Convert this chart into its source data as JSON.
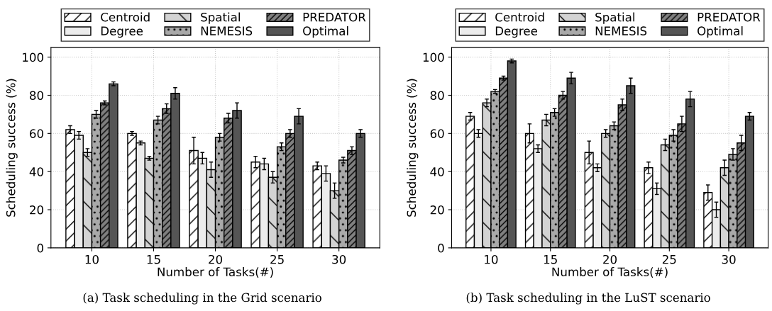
{
  "chart_data": [
    {
      "type": "bar",
      "xlabel": "Number of Tasks(#)",
      "ylabel": "Scheduling success (%)",
      "categories": [
        "10",
        "15",
        "20",
        "25",
        "30"
      ],
      "ylim": [
        0,
        105
      ],
      "yticks": [
        0,
        20,
        40,
        60,
        80,
        100
      ],
      "grid": true,
      "legend": "top",
      "annotations": [
        "(a) Task scheduling in the Grid scenario"
      ],
      "series": [
        {
          "name": "Centroid",
          "color": "#ffffff",
          "values": [
            62,
            60,
            51,
            45,
            43
          ],
          "errors": [
            2,
            1,
            7,
            3,
            2
          ]
        },
        {
          "name": "Degree",
          "color": "#ececec",
          "values": [
            59,
            55,
            47,
            44,
            39
          ],
          "errors": [
            2,
            1,
            3,
            3,
            4
          ]
        },
        {
          "name": "Spatial",
          "color": "#d3d3d3",
          "values": [
            50,
            47,
            41,
            37,
            30
          ],
          "errors": [
            2,
            1,
            4,
            3,
            4
          ]
        },
        {
          "name": "NEMESIS",
          "color": "#a9a9a9",
          "values": [
            70,
            67,
            58,
            53,
            46
          ],
          "errors": [
            2,
            2,
            2,
            2,
            1.5
          ]
        },
        {
          "name": "PREDATOR",
          "color": "#808080",
          "values": [
            76,
            73,
            68,
            60,
            51
          ],
          "errors": [
            1,
            2.5,
            2.5,
            2,
            2
          ]
        },
        {
          "name": "Optimal",
          "color": "#555555",
          "values": [
            86,
            81,
            72,
            69,
            60
          ],
          "errors": [
            1,
            3,
            4,
            4,
            2
          ]
        }
      ]
    },
    {
      "type": "bar",
      "xlabel": "Number of Tasks(#)",
      "ylabel": "Scheduling success (%)",
      "categories": [
        "10",
        "15",
        "20",
        "25",
        "30"
      ],
      "ylim": [
        0,
        105
      ],
      "yticks": [
        0,
        20,
        40,
        60,
        80,
        100
      ],
      "grid": true,
      "legend": "top",
      "annotations": [
        "(b) Task scheduling in the LuST scenario"
      ],
      "series": [
        {
          "name": "Centroid",
          "color": "#ffffff",
          "values": [
            69,
            60,
            50,
            42,
            29
          ],
          "errors": [
            2,
            5,
            6,
            3,
            4
          ]
        },
        {
          "name": "Degree",
          "color": "#ececec",
          "values": [
            60,
            52,
            42,
            31,
            20
          ],
          "errors": [
            2,
            2,
            2,
            3,
            4
          ]
        },
        {
          "name": "Spatial",
          "color": "#d3d3d3",
          "values": [
            76,
            67,
            60,
            54,
            42
          ],
          "errors": [
            2,
            3,
            2,
            3,
            4
          ]
        },
        {
          "name": "NEMESIS",
          "color": "#a9a9a9",
          "values": [
            82,
            71,
            64,
            59,
            49
          ],
          "errors": [
            1,
            2,
            2,
            3,
            3
          ]
        },
        {
          "name": "PREDATOR",
          "color": "#808080",
          "values": [
            89,
            80,
            75,
            65,
            55
          ],
          "errors": [
            1,
            2,
            3,
            4,
            4
          ]
        },
        {
          "name": "Optimal",
          "color": "#555555",
          "values": [
            98,
            89,
            85,
            78,
            69
          ],
          "errors": [
            1,
            3,
            4,
            4,
            2
          ]
        }
      ]
    }
  ]
}
